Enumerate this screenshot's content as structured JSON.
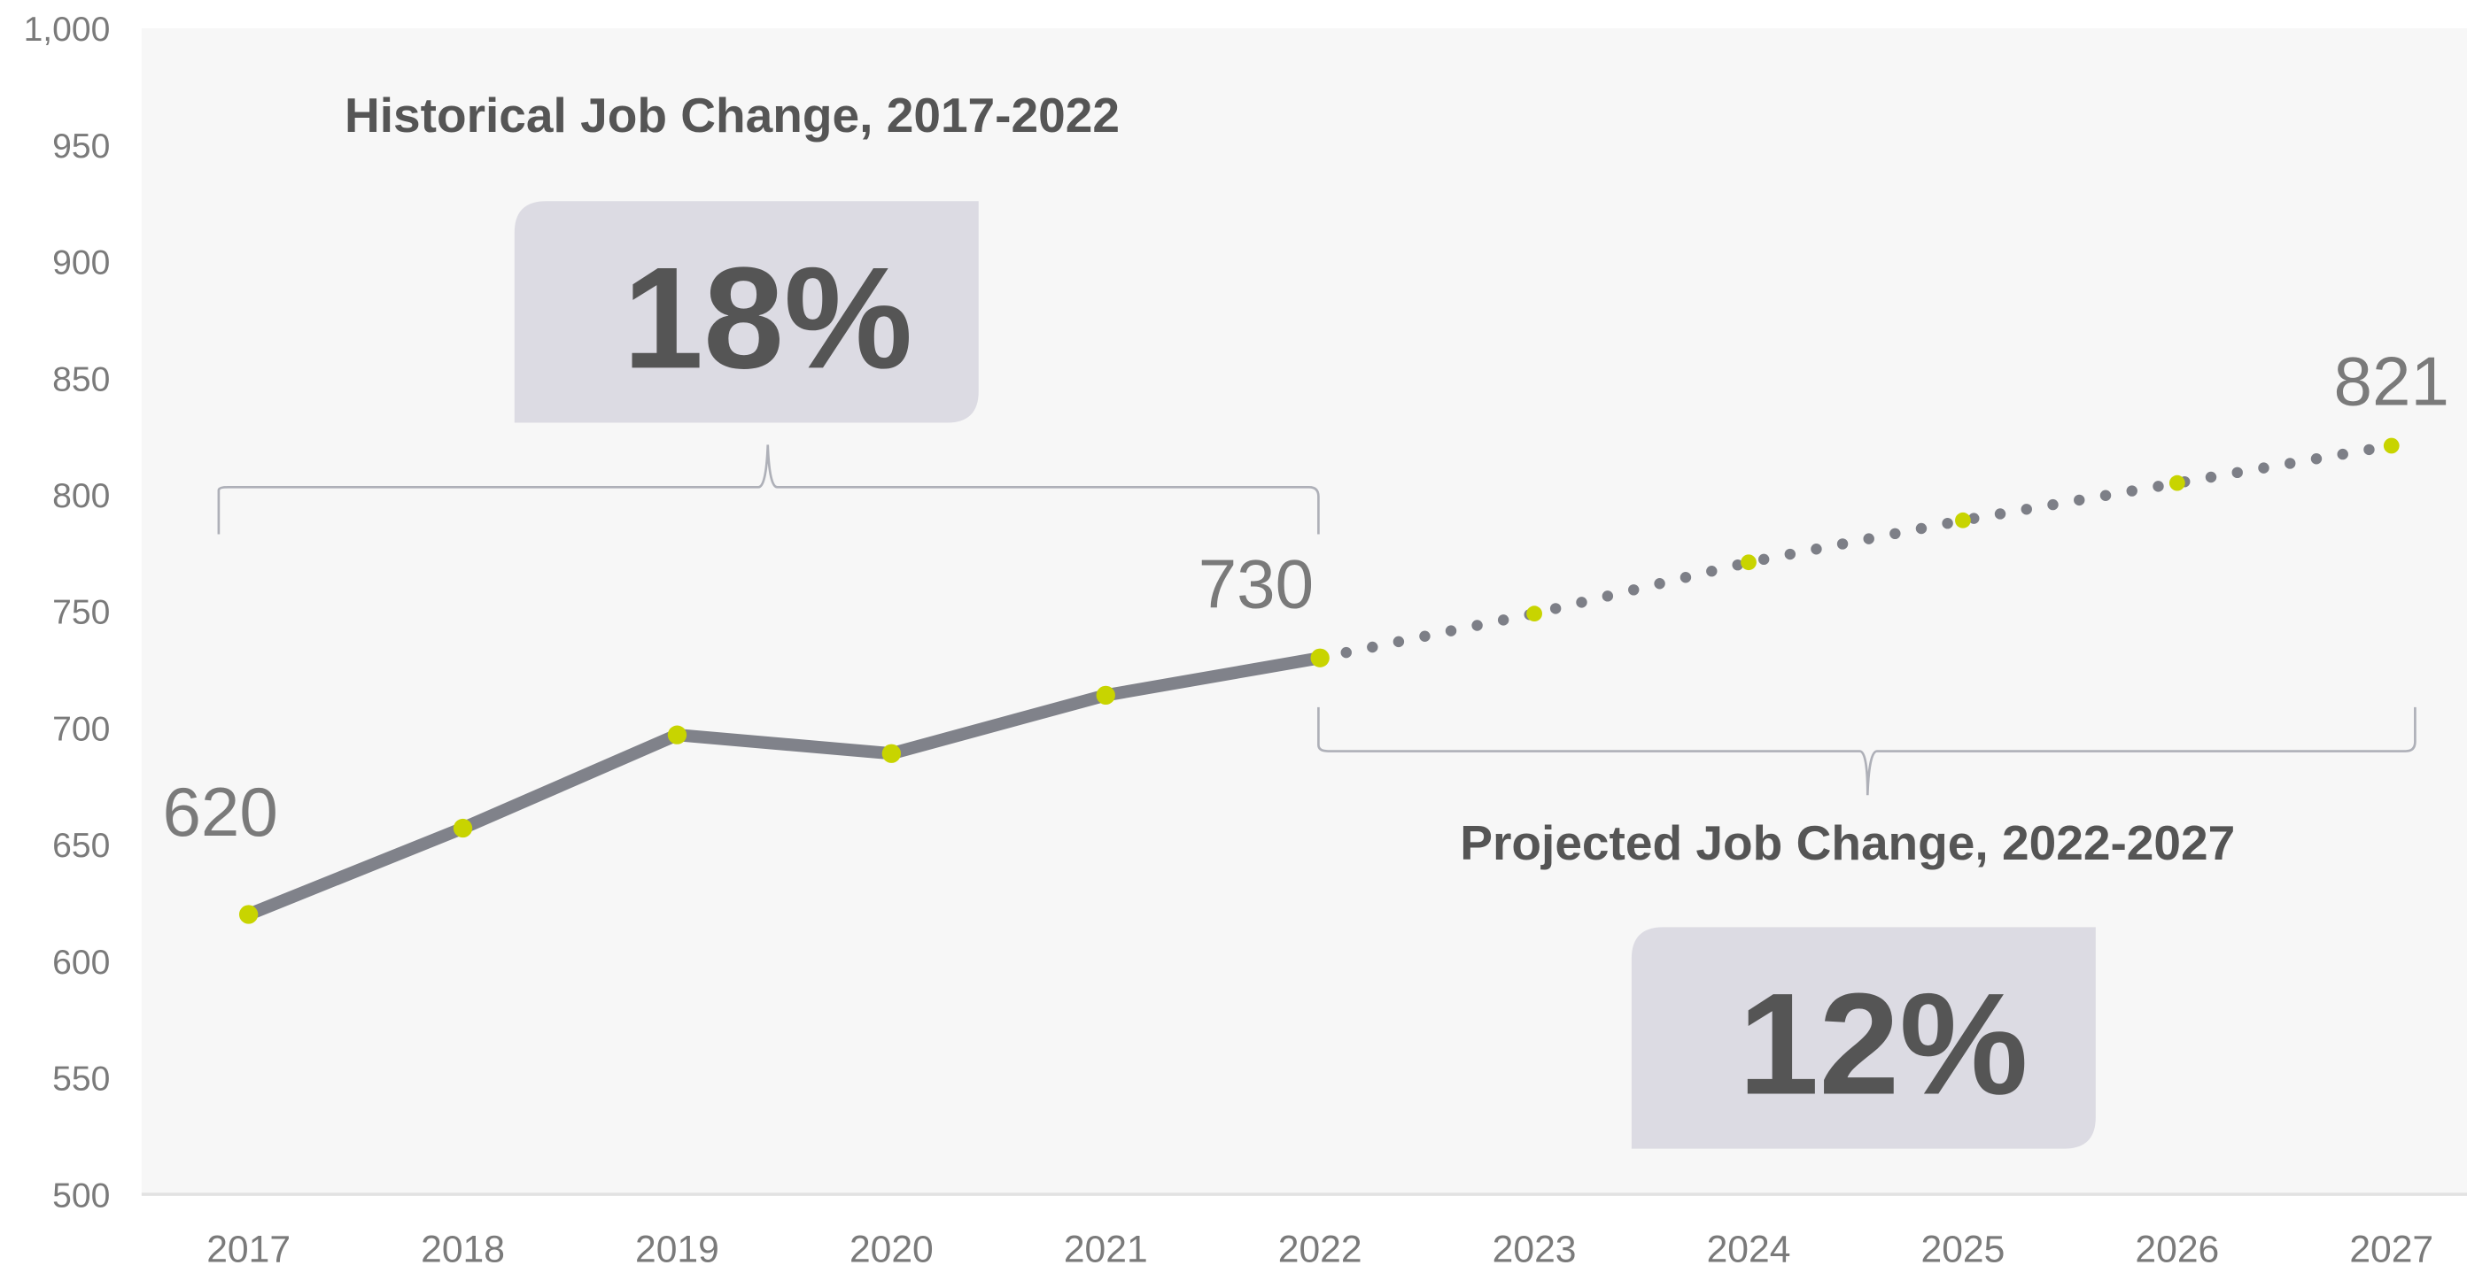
{
  "chart_data": {
    "type": "line",
    "categories": [
      "2017",
      "2018",
      "2019",
      "2020",
      "2021",
      "2022",
      "2023",
      "2024",
      "2025",
      "2026",
      "2027"
    ],
    "series": [
      {
        "color": "#80828a",
        "style": "solid",
        "values": [
          620,
          657,
          697,
          689,
          714,
          730,
          null,
          null,
          null,
          null,
          null
        ]
      },
      {
        "color": "#7d7f87",
        "style": "dotted",
        "values": [
          null,
          null,
          null,
          null,
          null,
          730,
          749,
          771,
          789,
          805,
          821
        ]
      }
    ],
    "marker_color": "#c8d400",
    "ylim": [
      500,
      1000
    ],
    "yticks": [
      500,
      550,
      600,
      650,
      700,
      750,
      800,
      850,
      900,
      950,
      {
        "value": 1000,
        "label": "1,000"
      }
    ],
    "data_labels": [
      {
        "series": 0,
        "index": 0
      },
      {
        "series": 0,
        "index": 5
      },
      {
        "series": 1,
        "index": 10
      }
    ],
    "annotations": [
      {
        "title": "Historical Job Change, 2017-2022",
        "value": "18%"
      },
      {
        "title": "Projected Job Change, 2022-2027",
        "value": "12%"
      }
    ]
  }
}
